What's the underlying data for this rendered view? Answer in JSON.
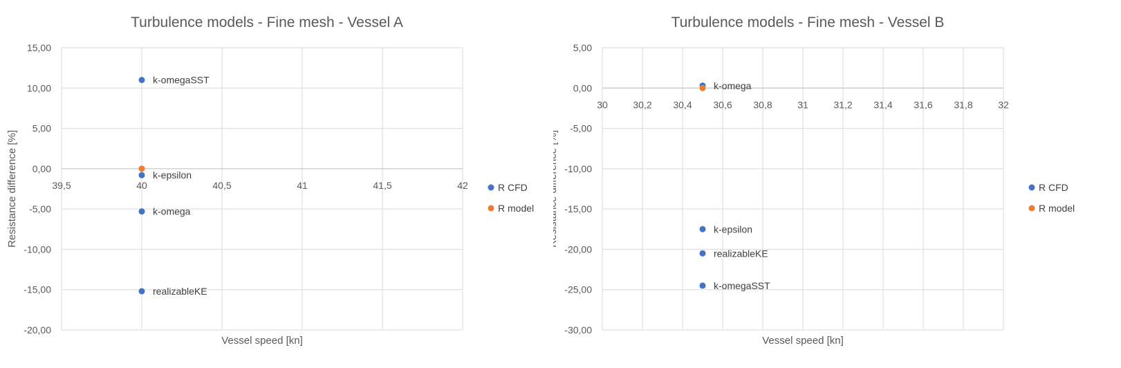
{
  "chart_data": [
    {
      "type": "scatter",
      "title": "Turbulence models - Fine mesh - Vessel A",
      "xlabel": "Vessel speed [kn]",
      "ylabel": "Resistance difference [%]",
      "xlim": [
        39.5,
        42
      ],
      "ylim": [
        -20,
        15
      ],
      "xticks": [
        39.5,
        40,
        40.5,
        41,
        41.5,
        42
      ],
      "yticks": [
        15,
        10,
        5,
        0,
        -5,
        -10,
        -15,
        -20
      ],
      "xtick_labels": [
        "39,5",
        "40",
        "40,5",
        "41",
        "41,5",
        "42"
      ],
      "ytick_labels": [
        "15,00",
        "10,00",
        "5,00",
        "0,00",
        "-5,00",
        "-10,00",
        "-15,00",
        "-20,00"
      ],
      "grid": "on",
      "legend_position": "right",
      "series": [
        {
          "name": "R CFD",
          "color": "#4472C4",
          "points": [
            {
              "x": 40,
              "y": 11.0,
              "label": "k-omegaSST"
            },
            {
              "x": 40,
              "y": -0.8,
              "label": "k-epsilon"
            },
            {
              "x": 40,
              "y": -5.3,
              "label": "k-omega"
            },
            {
              "x": 40,
              "y": -15.2,
              "label": "realizableKE"
            }
          ]
        },
        {
          "name": "R model",
          "color": "#ED7D31",
          "points": [
            {
              "x": 40,
              "y": 0.0
            }
          ]
        }
      ]
    },
    {
      "type": "scatter",
      "title": "Turbulence models - Fine mesh - Vessel B",
      "xlabel": "Vessel speed [kn]",
      "ylabel": "Resistance difference [%]",
      "xlim": [
        30,
        32
      ],
      "ylim": [
        -30,
        5
      ],
      "xticks": [
        30,
        30.2,
        30.4,
        30.6,
        30.8,
        31,
        31.2,
        31.4,
        31.6,
        31.8,
        32
      ],
      "yticks": [
        5,
        0,
        -5,
        -10,
        -15,
        -20,
        -25,
        -30
      ],
      "xtick_labels": [
        "30",
        "30,2",
        "30,4",
        "30,6",
        "30,8",
        "31",
        "31,2",
        "31,4",
        "31,6",
        "31,8",
        "32"
      ],
      "ytick_labels": [
        "5,00",
        "0,00",
        "-5,00",
        "-10,00",
        "-15,00",
        "-20,00",
        "-25,00",
        "-30,00"
      ],
      "grid": "on",
      "legend_position": "right",
      "series": [
        {
          "name": "R CFD",
          "color": "#4472C4",
          "points": [
            {
              "x": 30.5,
              "y": 0.3,
              "label": "k-omega"
            },
            {
              "x": 30.5,
              "y": -17.5,
              "label": "k-epsilon"
            },
            {
              "x": 30.5,
              "y": -20.5,
              "label": "realizableKE"
            },
            {
              "x": 30.5,
              "y": -24.5,
              "label": "k-omegaSST"
            }
          ]
        },
        {
          "name": "R model",
          "color": "#ED7D31",
          "points": [
            {
              "x": 30.5,
              "y": 0.0
            }
          ]
        }
      ]
    }
  ]
}
